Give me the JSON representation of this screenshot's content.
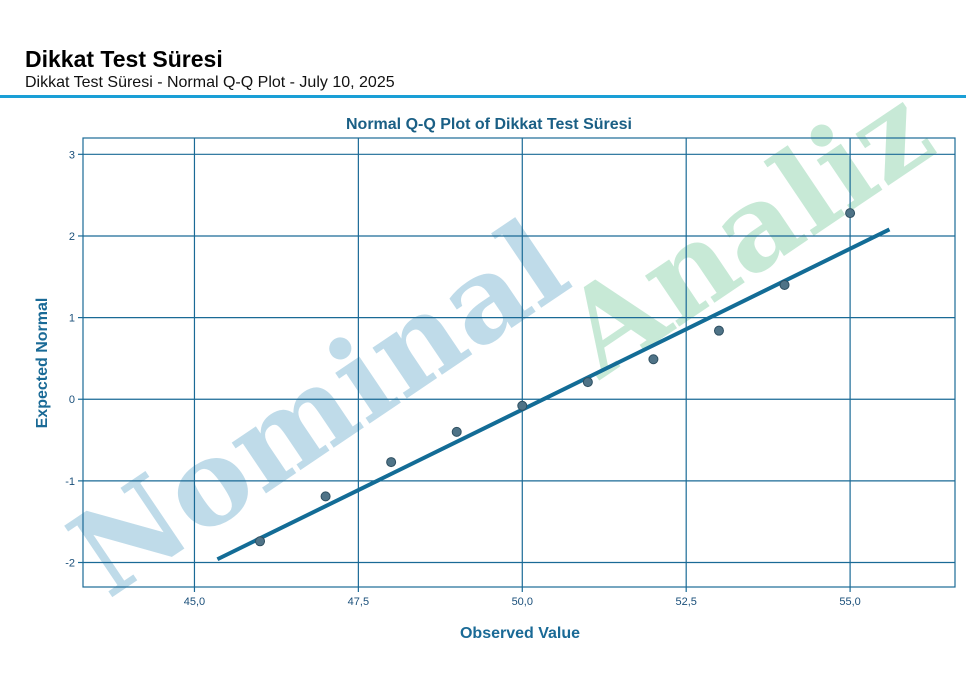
{
  "header": {
    "title": "Dikkat Test Süresi",
    "subtitle": "Dikkat Test Süresi - Normal Q-Q Plot - July 10, 2025"
  },
  "watermark": {
    "word1": "Nominal",
    "word2": "Analiz",
    "color1": "#a9cfe2",
    "color2": "#b9e3cc"
  },
  "colors": {
    "accent": "#1a9fd6",
    "axis": "#1a6a96",
    "line": "#136c96",
    "point": "#4f7387"
  },
  "chart_data": {
    "type": "scatter",
    "title": "Normal Q-Q Plot of Dikkat Test Süresi",
    "xlabel": "Observed Value",
    "ylabel": "Expected Normal",
    "xlim": [
      43.3,
      56.6
    ],
    "ylim": [
      -2.3,
      3.2
    ],
    "x_ticks": [
      45.0,
      47.5,
      50.0,
      52.5,
      55.0
    ],
    "x_tick_labels": [
      "45,0",
      "47,5",
      "50,0",
      "52,5",
      "55,0"
    ],
    "y_ticks": [
      3,
      2,
      1,
      0,
      -1,
      -2
    ],
    "y_tick_labels": [
      "3",
      "2",
      "1",
      "0",
      "-1",
      "-2"
    ],
    "grid": true,
    "points": [
      {
        "x": 46,
        "y": -1.74
      },
      {
        "x": 47,
        "y": -1.19
      },
      {
        "x": 48,
        "y": -0.77
      },
      {
        "x": 49,
        "y": -0.4
      },
      {
        "x": 50,
        "y": -0.08
      },
      {
        "x": 51,
        "y": 0.21
      },
      {
        "x": 52,
        "y": 0.49
      },
      {
        "x": 53,
        "y": 0.84
      },
      {
        "x": 54,
        "y": 1.4
      },
      {
        "x": 55,
        "y": 2.28
      }
    ],
    "reference_line": {
      "x": [
        45.35,
        55.6
      ],
      "y": [
        -1.96,
        2.08
      ]
    }
  }
}
